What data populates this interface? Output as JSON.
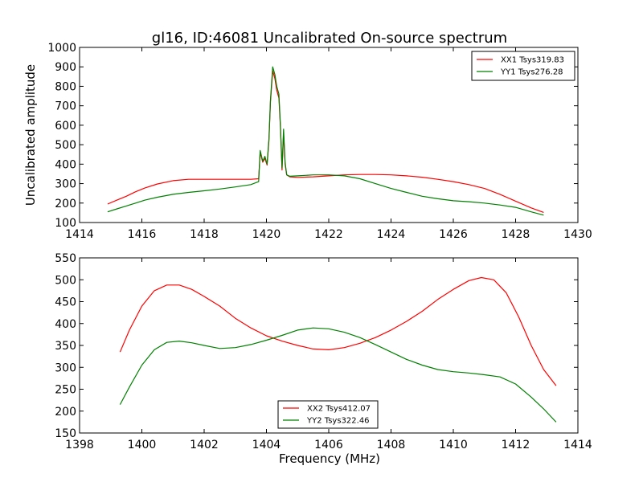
{
  "colors": {
    "xx": "#ff0000",
    "yy": "#008000",
    "axes": "#000000",
    "background": "#ffffff"
  },
  "chart_data": [
    {
      "type": "line",
      "title": "gl16, ID:46081 Uncalibrated On-source spectrum",
      "xlabel": "",
      "ylabel": "Uncalibrated amplitude",
      "xlim": [
        1414,
        1430
      ],
      "ylim": [
        100,
        1000
      ],
      "xticks": [
        "1414",
        "1416",
        "1418",
        "1420",
        "1422",
        "1424",
        "1426",
        "1428",
        "1430"
      ],
      "yticks": [
        "100",
        "200",
        "300",
        "400",
        "500",
        "600",
        "700",
        "800",
        "900",
        "1000"
      ],
      "legend_position": "top-right",
      "series": [
        {
          "name": "XX1 Tsys319.83",
          "color": "#ff0000",
          "x": [
            1414.9,
            1415.2,
            1415.5,
            1415.8,
            1416.1,
            1416.5,
            1417.0,
            1417.5,
            1418.0,
            1418.5,
            1419.0,
            1419.5,
            1419.75,
            1419.8,
            1419.88,
            1419.95,
            1420.02,
            1420.08,
            1420.13,
            1420.2,
            1420.27,
            1420.33,
            1420.4,
            1420.45,
            1420.5,
            1420.55,
            1420.6,
            1420.65,
            1420.75,
            1421.0,
            1421.5,
            1422.0,
            1422.5,
            1423.0,
            1423.5,
            1424.0,
            1424.5,
            1425.0,
            1425.5,
            1426.0,
            1426.5,
            1427.0,
            1427.5,
            1428.0,
            1428.5,
            1428.9
          ],
          "y": [
            195,
            215,
            235,
            258,
            278,
            298,
            315,
            322,
            322,
            322,
            322,
            322,
            325,
            460,
            410,
            430,
            395,
            520,
            720,
            880,
            840,
            780,
            740,
            590,
            370,
            560,
            400,
            345,
            335,
            332,
            335,
            340,
            345,
            347,
            347,
            345,
            340,
            333,
            322,
            310,
            295,
            275,
            245,
            210,
            175,
            152
          ]
        },
        {
          "name": "YY1 Tsys276.28",
          "color": "#008000",
          "x": [
            1414.9,
            1415.2,
            1415.5,
            1415.8,
            1416.1,
            1416.5,
            1417.0,
            1417.5,
            1418.0,
            1418.5,
            1419.0,
            1419.5,
            1419.75,
            1419.8,
            1419.88,
            1419.95,
            1420.02,
            1420.08,
            1420.13,
            1420.2,
            1420.27,
            1420.33,
            1420.4,
            1420.45,
            1420.5,
            1420.55,
            1420.6,
            1420.65,
            1420.75,
            1421.0,
            1421.5,
            1422.0,
            1422.5,
            1423.0,
            1423.5,
            1424.0,
            1424.5,
            1425.0,
            1425.5,
            1426.0,
            1426.5,
            1427.0,
            1427.5,
            1428.0,
            1428.5,
            1428.9
          ],
          "y": [
            155,
            170,
            185,
            200,
            215,
            230,
            245,
            255,
            263,
            272,
            283,
            295,
            310,
            470,
            415,
            440,
            400,
            530,
            730,
            900,
            860,
            800,
            760,
            600,
            380,
            580,
            410,
            345,
            338,
            340,
            345,
            345,
            340,
            325,
            300,
            275,
            255,
            235,
            222,
            212,
            207,
            200,
            190,
            178,
            155,
            138
          ]
        }
      ]
    },
    {
      "type": "line",
      "title": "",
      "xlabel": "Frequency (MHz)",
      "ylabel": "",
      "xlim": [
        1398,
        1414
      ],
      "ylim": [
        150,
        550
      ],
      "xticks": [
        "1398",
        "1400",
        "1402",
        "1404",
        "1406",
        "1408",
        "1410",
        "1412",
        "1414"
      ],
      "yticks": [
        "150",
        "200",
        "250",
        "300",
        "350",
        "400",
        "450",
        "500",
        "550"
      ],
      "legend_position": "bottom-center",
      "series": [
        {
          "name": "XX2 Tsys412.07",
          "color": "#ff0000",
          "x": [
            1399.3,
            1399.6,
            1400.0,
            1400.4,
            1400.8,
            1401.2,
            1401.6,
            1402.0,
            1402.5,
            1403.0,
            1403.5,
            1404.0,
            1404.5,
            1405.0,
            1405.5,
            1406.0,
            1406.5,
            1407.0,
            1407.5,
            1408.0,
            1408.5,
            1409.0,
            1409.5,
            1410.0,
            1410.5,
            1410.9,
            1411.3,
            1411.7,
            1412.1,
            1412.5,
            1412.9,
            1413.3
          ],
          "y": [
            335,
            385,
            440,
            475,
            488,
            488,
            478,
            462,
            440,
            412,
            390,
            372,
            360,
            350,
            342,
            340,
            345,
            355,
            368,
            385,
            405,
            428,
            455,
            478,
            498,
            505,
            500,
            470,
            415,
            350,
            295,
            258
          ]
        },
        {
          "name": "YY2 Tsys322.46",
          "color": "#008000",
          "x": [
            1399.3,
            1399.6,
            1400.0,
            1400.4,
            1400.8,
            1401.2,
            1401.6,
            1402.0,
            1402.5,
            1403.0,
            1403.5,
            1404.0,
            1404.5,
            1405.0,
            1405.5,
            1406.0,
            1406.5,
            1407.0,
            1407.5,
            1408.0,
            1408.5,
            1409.0,
            1409.5,
            1410.0,
            1410.5,
            1411.0,
            1411.5,
            1412.0,
            1412.5,
            1412.9,
            1413.3
          ],
          "y": [
            215,
            255,
            305,
            340,
            357,
            360,
            356,
            350,
            343,
            345,
            352,
            362,
            373,
            385,
            390,
            388,
            380,
            368,
            352,
            335,
            318,
            305,
            295,
            290,
            287,
            283,
            278,
            262,
            232,
            205,
            175
          ]
        }
      ]
    }
  ]
}
